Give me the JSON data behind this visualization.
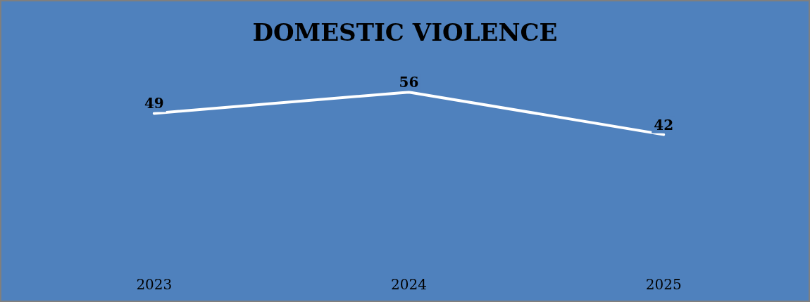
{
  "chart_data": {
    "type": "line",
    "title": "DOMESTIC VIOLENCE",
    "categories": [
      "2023",
      "2024",
      "2025"
    ],
    "series": [
      {
        "color": "#ffffff",
        "values": [
          49,
          56,
          42
        ]
      }
    ],
    "data_labels": true,
    "marker": "none",
    "line_style": "solid",
    "grid": false,
    "tick_labels": "x"
  }
}
